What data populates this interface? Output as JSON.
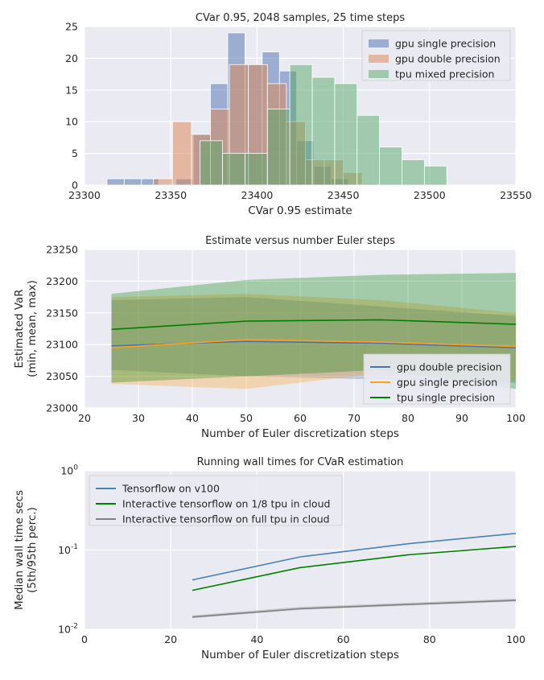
{
  "chart_data": [
    {
      "type": "histogram",
      "title": "CVar 0.95, 2048 samples, 25 time steps",
      "xlabel": "CVar 0.95 estimate",
      "ylabel": "",
      "xlim": [
        23300,
        23550
      ],
      "ylim": [
        0,
        25
      ],
      "xticks": [
        "23300",
        "23350",
        "23400",
        "23450",
        "23500",
        "23550"
      ],
      "yticks": [
        "0",
        "5",
        "10",
        "15",
        "20",
        "25"
      ],
      "legend_position": "top-right",
      "grid": true,
      "series": [
        {
          "name": "gpu single precision",
          "color": "#4c72b0",
          "bins": [
            {
              "x0": 23313,
              "x1": 23323,
              "y": 1
            },
            {
              "x0": 23323,
              "x1": 23333,
              "y": 1
            },
            {
              "x0": 23333,
              "x1": 23343,
              "y": 1
            },
            {
              "x0": 23343,
              "x1": 23353,
              "y": 0
            },
            {
              "x0": 23353,
              "x1": 23363,
              "y": 1
            },
            {
              "x0": 23363,
              "x1": 23373,
              "y": 8
            },
            {
              "x0": 23373,
              "x1": 23383,
              "y": 16
            },
            {
              "x0": 23383,
              "x1": 23393,
              "y": 24
            },
            {
              "x0": 23393,
              "x1": 23403,
              "y": 19
            },
            {
              "x0": 23403,
              "x1": 23413,
              "y": 21
            },
            {
              "x0": 23413,
              "x1": 23423,
              "y": 18
            },
            {
              "x0": 23423,
              "x1": 23433,
              "y": 7
            },
            {
              "x0": 23433,
              "x1": 23443,
              "y": 3
            },
            {
              "x0": 23443,
              "x1": 23453,
              "y": 1
            }
          ]
        },
        {
          "name": "gpu double precision",
          "color": "#dd8452",
          "bins": [
            {
              "x0": 23340,
              "x1": 23351,
              "y": 1
            },
            {
              "x0": 23351,
              "x1": 23362,
              "y": 10
            },
            {
              "x0": 23362,
              "x1": 23373,
              "y": 8
            },
            {
              "x0": 23373,
              "x1": 23384,
              "y": 12
            },
            {
              "x0": 23384,
              "x1": 23395,
              "y": 19
            },
            {
              "x0": 23395,
              "x1": 23406,
              "y": 19
            },
            {
              "x0": 23406,
              "x1": 23417,
              "y": 16
            },
            {
              "x0": 23417,
              "x1": 23428,
              "y": 10
            },
            {
              "x0": 23428,
              "x1": 23439,
              "y": 4
            },
            {
              "x0": 23439,
              "x1": 23450,
              "y": 4
            },
            {
              "x0": 23450,
              "x1": 23461,
              "y": 2
            }
          ]
        },
        {
          "name": "tpu mixed precision",
          "color": "#55a868",
          "bins": [
            {
              "x0": 23367,
              "x1": 23380,
              "y": 7
            },
            {
              "x0": 23380,
              "x1": 23393,
              "y": 5
            },
            {
              "x0": 23393,
              "x1": 23406,
              "y": 5
            },
            {
              "x0": 23406,
              "x1": 23419,
              "y": 12
            },
            {
              "x0": 23419,
              "x1": 23432,
              "y": 19
            },
            {
              "x0": 23432,
              "x1": 23445,
              "y": 17
            },
            {
              "x0": 23445,
              "x1": 23458,
              "y": 16
            },
            {
              "x0": 23458,
              "x1": 23471,
              "y": 11
            },
            {
              "x0": 23471,
              "x1": 23484,
              "y": 6
            },
            {
              "x0": 23484,
              "x1": 23497,
              "y": 4
            },
            {
              "x0": 23497,
              "x1": 23510,
              "y": 3
            }
          ]
        }
      ]
    },
    {
      "type": "area",
      "title": "Estimate versus number Euler steps",
      "xlabel": "Number of Euler discretization steps",
      "ylabel": "Estimated VaR",
      "ylabel2": "(min, mean, max)",
      "xlim": [
        20,
        100
      ],
      "ylim": [
        23000,
        23250
      ],
      "xticks": [
        "20",
        "30",
        "40",
        "50",
        "60",
        "70",
        "80",
        "90",
        "100"
      ],
      "yticks": [
        "23000",
        "23050",
        "23100",
        "23150",
        "23200",
        "23250"
      ],
      "legend_position": "lower-right",
      "grid": true,
      "x": [
        25,
        50,
        75,
        100
      ],
      "series": [
        {
          "name": "gpu double precision",
          "color": "#4c72b0",
          "mean": [
            23098,
            23105,
            23102,
            23095
          ],
          "min": [
            23060,
            23050,
            23045,
            23040
          ],
          "max": [
            23170,
            23175,
            23160,
            23145
          ]
        },
        {
          "name": "gpu single precision",
          "color": "#ff9f1c",
          "mean": [
            23095,
            23108,
            23104,
            23097
          ],
          "min": [
            23038,
            23030,
            23055,
            23045
          ],
          "max": [
            23175,
            23180,
            23170,
            23150
          ]
        },
        {
          "name": "tpu single precision",
          "color": "#008000",
          "mean": [
            23124,
            23137,
            23139,
            23132
          ],
          "min": [
            23040,
            23050,
            23060,
            23030
          ],
          "max": [
            23180,
            23202,
            23210,
            23213
          ]
        }
      ]
    },
    {
      "type": "line",
      "title": "Running wall times for CVaR estimation",
      "xlabel": "Number of Euler discretization steps",
      "ylabel": "Median wall time secs",
      "ylabel2": "(5th/95th perc.)",
      "xlim": [
        0,
        100
      ],
      "ylim": [
        0.01,
        1
      ],
      "yscale": "log",
      "xticks": [
        "0",
        "20",
        "40",
        "60",
        "80",
        "100"
      ],
      "yticks": [
        {
          "base": "10",
          "exp": "-2",
          "value": 0.01
        },
        {
          "base": "10",
          "exp": "-1",
          "value": 0.1
        },
        {
          "base": "10",
          "exp": "0",
          "value": 1
        }
      ],
      "legend_position": "top-left",
      "grid": true,
      "x": [
        25,
        50,
        75,
        100
      ],
      "series": [
        {
          "name": "Tensorflow on v100",
          "color": "#4682b4",
          "y": [
            0.042,
            0.082,
            0.12,
            0.162
          ],
          "lo": [
            0.042,
            0.082,
            0.12,
            0.162
          ],
          "hi": [
            0.042,
            0.082,
            0.12,
            0.162
          ]
        },
        {
          "name": "Interactive tensorflow on 1/8 tpu in cloud",
          "color": "#008000",
          "y": [
            0.031,
            0.06,
            0.087,
            0.111
          ],
          "lo": [
            0.031,
            0.06,
            0.087,
            0.111
          ],
          "hi": [
            0.031,
            0.06,
            0.087,
            0.111
          ]
        },
        {
          "name": "Interactive tensorflow on full tpu in cloud",
          "color": "#808080",
          "y": [
            0.0143,
            0.0182,
            0.0206,
            0.0232
          ],
          "lo": [
            0.0138,
            0.0176,
            0.0199,
            0.0224
          ],
          "hi": [
            0.015,
            0.0192,
            0.0216,
            0.0244
          ]
        }
      ]
    }
  ]
}
